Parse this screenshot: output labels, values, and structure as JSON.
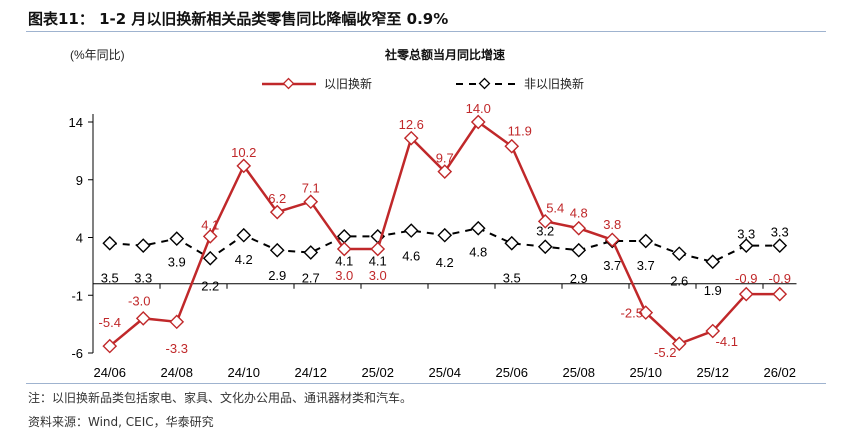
{
  "header": {
    "title": "图表11：  1-2 月以旧换新相关品类零售同比降幅收窄至 0.9%"
  },
  "chart_data": {
    "type": "line",
    "title": "社零总额当月同比增速",
    "ylabel": "(%年同比)",
    "xlabel": "",
    "categories": [
      "24/06",
      "24/07",
      "24/08",
      "24/09",
      "24/10",
      "24/11",
      "24/12",
      "25/01",
      "25/02",
      "25/03",
      "25/04",
      "25/05",
      "25/06",
      "25/07",
      "25/08",
      "25/09",
      "25/10",
      "25/11",
      "25/12",
      "26/01",
      "26/02"
    ],
    "tick_labels": [
      "24/06",
      "24/08",
      "24/10",
      "24/12",
      "25/02",
      "25/04",
      "25/06",
      "25/08",
      "25/10",
      "25/12",
      "26/02"
    ],
    "yticks": [
      14,
      9,
      4,
      -1,
      -6
    ],
    "ylim": [
      -6,
      14
    ],
    "grid": false,
    "legend": "top",
    "series": [
      {
        "name": "以旧换新",
        "color": "#c0282a",
        "style": "solid",
        "values": [
          -5.4,
          -3.0,
          -3.3,
          4.1,
          10.2,
          6.2,
          7.1,
          3.0,
          3.0,
          12.6,
          9.7,
          14.0,
          11.9,
          5.4,
          4.8,
          3.8,
          -2.5,
          -5.2,
          -4.1,
          -0.9,
          -0.9
        ]
      },
      {
        "name": "非以旧换新",
        "color": "#000000",
        "style": "dashed",
        "values": [
          3.5,
          3.3,
          3.9,
          2.2,
          4.2,
          2.9,
          2.7,
          4.1,
          4.1,
          4.6,
          4.2,
          4.8,
          3.5,
          3.2,
          2.9,
          3.7,
          3.7,
          2.6,
          1.9,
          3.3,
          3.3
        ]
      }
    ]
  },
  "footer": {
    "note": "注：以旧换新品类包括家电、家具、文化办公用品、通讯器材类和汽车。",
    "source": "资料来源：Wind, CEIC，华泰研究"
  }
}
